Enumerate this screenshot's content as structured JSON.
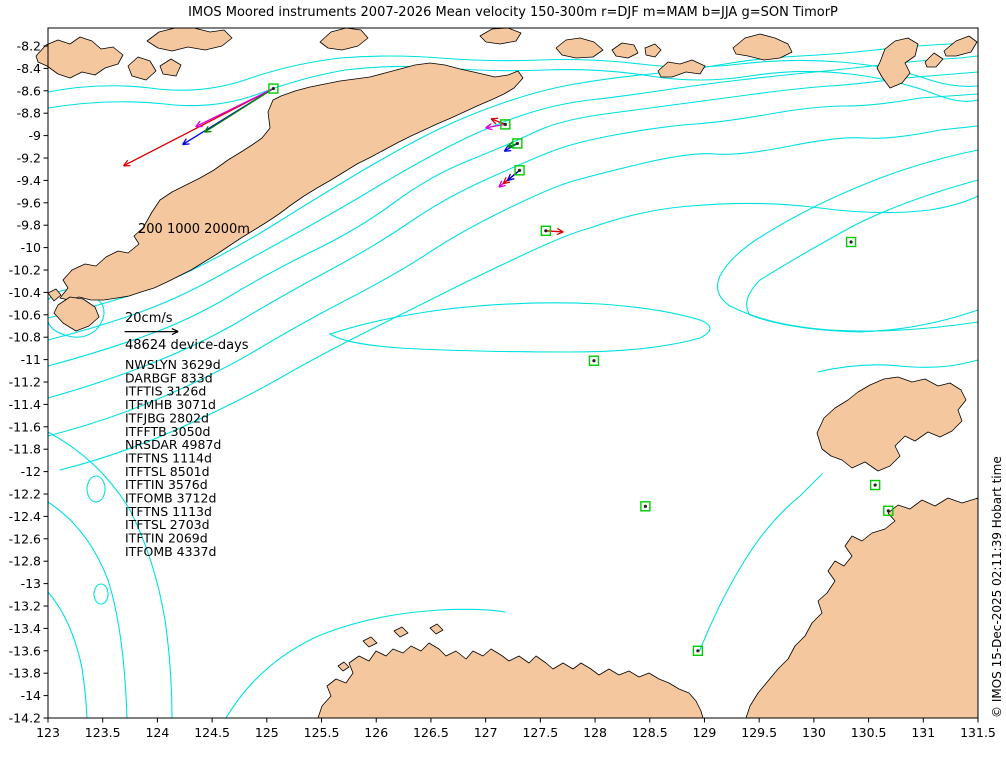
{
  "title": "IMOS Moored instruments 2007-2026 Mean velocity 150-300m r=DJF m=MAM b=JJA g=SON TimorP",
  "watermark": "© IMOS 15-Dec-2025 02:11:39 Hobart time",
  "colors": {
    "land": "#f5c79e",
    "coast": "#000000",
    "contour": "#00e0e0",
    "marker": "#00cc00",
    "red": "#dd0000",
    "blue": "#0000dd",
    "magenta": "#dd00dd",
    "green": "#008800",
    "black": "#000000",
    "text": "#000000",
    "background": "#ffffff"
  },
  "x_axis": {
    "min": 123,
    "max": 131.5,
    "tick_labels": [
      "123",
      "123.5",
      "124",
      "124.5",
      "125",
      "125.5",
      "126",
      "126.5",
      "127",
      "127.5",
      "128",
      "128.5",
      "129",
      "129.5",
      "130",
      "130.5",
      "131",
      "131.5"
    ]
  },
  "y_axis": {
    "min": -14.2,
    "max": -8.04,
    "tick_labels": [
      "-8.2",
      "-8.4",
      "-8.6",
      "-8.8",
      "-9",
      "-9.2",
      "-9.4",
      "-9.6",
      "-9.8",
      "-10",
      "-10.2",
      "-10.4",
      "-10.6",
      "-10.8",
      "-11",
      "-11.2",
      "-11.4",
      "-11.6",
      "-11.8",
      "-12",
      "-12.2",
      "-12.4",
      "-12.6",
      "-12.8",
      "-13",
      "-13.2",
      "-13.4",
      "-13.6",
      "-13.8",
      "-14",
      "-14.2"
    ]
  },
  "annotations": {
    "contour_label": "200 1000 2000m",
    "scale_label": "20cm/s",
    "device_days": "48624 device-days"
  },
  "instruments": [
    "NWSLYN 3629d",
    "DARBGF 833d",
    "ITFTIS 3126d",
    "ITFMHB 3071d",
    "ITFJBG 2802d",
    "ITFFTB 3050d",
    "NRSDAR 4987d",
    "ITFTNS 1114d",
    "ITFTSL 8501d",
    "ITFTIN 3576d",
    "ITFOMB 3712d",
    "ITFTNS 1113d",
    "ITFTSL 2703d",
    "ITFTIN 2069d",
    "ITFOMB 4337d"
  ],
  "chart_data": {
    "type": "map",
    "region": {
      "lon_min": 123,
      "lon_max": 131.5,
      "lat_min": -14.2,
      "lat_max": -8.04
    },
    "depth_range": "150-300m",
    "season_colors": {
      "DJF": "red",
      "MAM": "magenta",
      "JJA": "blue",
      "SON": "green"
    },
    "moorings": [
      {
        "lon": 125.06,
        "lat": -8.58
      },
      {
        "lon": 127.18,
        "lat": -8.9
      },
      {
        "lon": 127.29,
        "lat": -9.07
      },
      {
        "lon": 127.31,
        "lat": -9.31
      },
      {
        "lon": 127.55,
        "lat": -9.85
      },
      {
        "lon": 130.34,
        "lat": -9.95
      },
      {
        "lon": 127.99,
        "lat": -11.01
      },
      {
        "lon": 128.46,
        "lat": -12.31
      },
      {
        "lon": 130.56,
        "lat": -12.12
      },
      {
        "lon": 130.68,
        "lat": -12.35
      },
      {
        "lon": 128.94,
        "lat": -13.6
      }
    ],
    "vectors": [
      {
        "season": "DJF",
        "color": "red",
        "from": [
          125.06,
          -8.58
        ],
        "to": [
          123.69,
          -9.27
        ]
      },
      {
        "season": "JJA",
        "color": "blue",
        "from": [
          125.06,
          -8.58
        ],
        "to": [
          124.23,
          -9.08
        ]
      },
      {
        "season": "SON",
        "color": "green",
        "from": [
          125.06,
          -8.58
        ],
        "to": [
          124.43,
          -8.97
        ]
      },
      {
        "season": "MAM",
        "color": "magenta",
        "from": [
          125.06,
          -8.58
        ],
        "to": [
          124.35,
          -8.92
        ]
      },
      {
        "season": "MAM",
        "color": "magenta",
        "from": [
          127.18,
          -8.9
        ],
        "to": [
          127.0,
          -8.93
        ]
      },
      {
        "season": "DJF",
        "color": "red",
        "from": [
          127.18,
          -8.9
        ],
        "to": [
          127.05,
          -8.85
        ]
      },
      {
        "season": "JJA",
        "color": "blue",
        "from": [
          127.29,
          -9.07
        ],
        "to": [
          127.17,
          -9.14
        ]
      },
      {
        "season": "SON",
        "color": "green",
        "from": [
          127.29,
          -9.07
        ],
        "to": [
          127.2,
          -9.1
        ]
      },
      {
        "season": "MAM",
        "color": "magenta",
        "from": [
          127.31,
          -9.31
        ],
        "to": [
          127.12,
          -9.46
        ]
      },
      {
        "season": "DJF",
        "color": "red",
        "from": [
          127.31,
          -9.31
        ],
        "to": [
          127.16,
          -9.43
        ]
      },
      {
        "season": "JJA",
        "color": "blue",
        "from": [
          127.31,
          -9.31
        ],
        "to": [
          127.2,
          -9.4
        ]
      },
      {
        "season": "DJF",
        "color": "red",
        "from": [
          127.55,
          -9.85
        ],
        "to": [
          127.71,
          -9.86
        ]
      }
    ],
    "scale_arrow": {
      "label": "20cm/s",
      "color": "black",
      "from": [
        123.7,
        -10.75
      ],
      "to": [
        124.19,
        -10.75
      ]
    }
  }
}
